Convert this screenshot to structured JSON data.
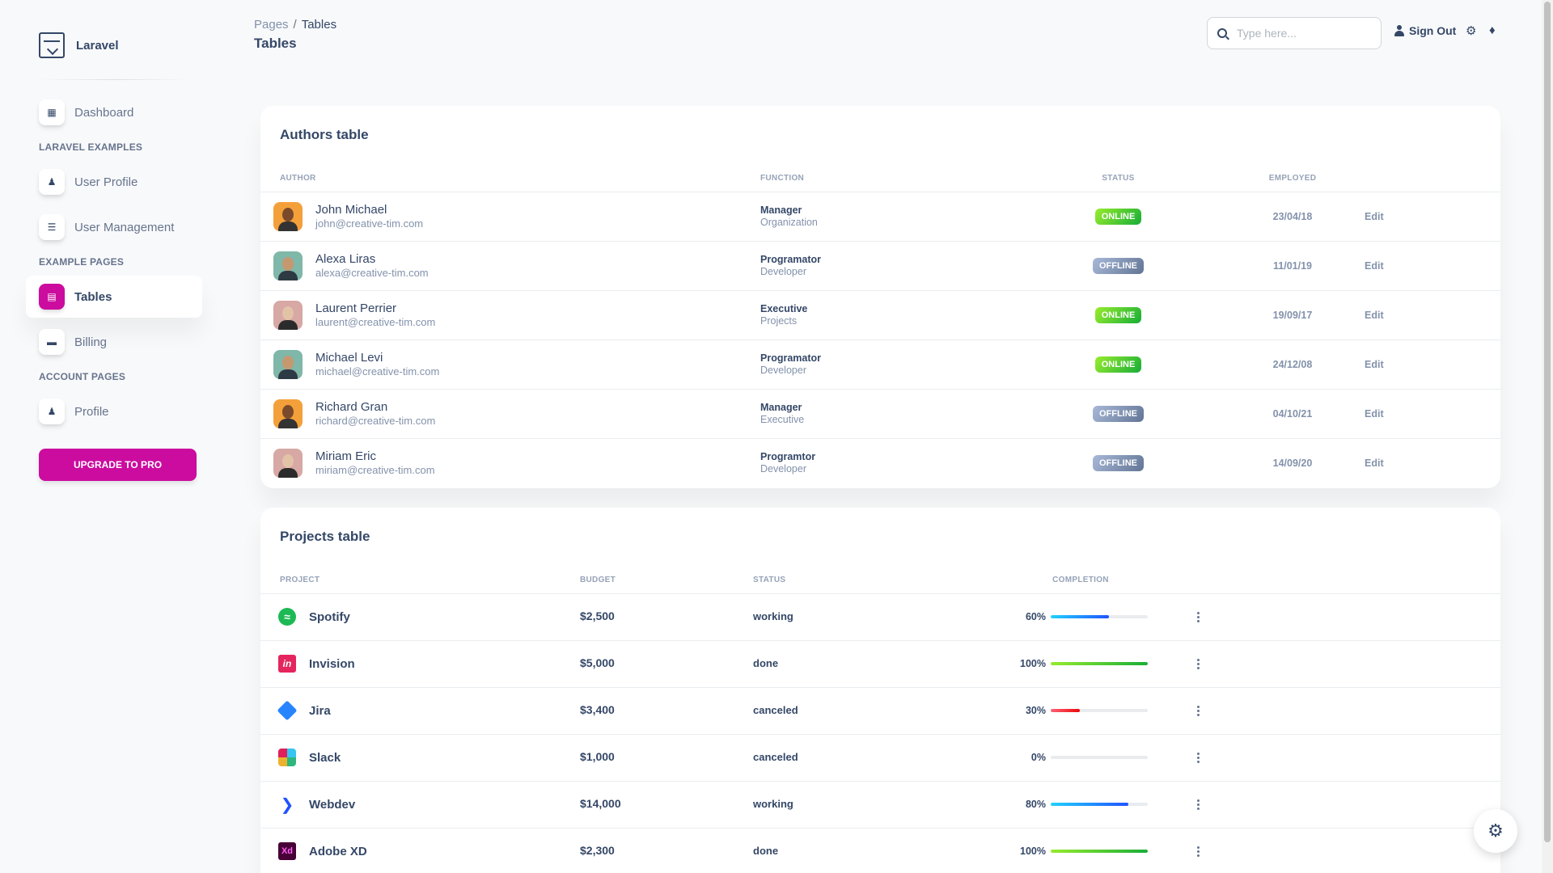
{
  "sidebar": {
    "brand": "Laravel",
    "items": [
      {
        "label": "Dashboard",
        "icon": "shop-icon"
      },
      {
        "label": "User Profile",
        "icon": "user-icon"
      },
      {
        "label": "User Management",
        "icon": "list-icon"
      },
      {
        "label": "Tables",
        "icon": "chart-icon",
        "active": true
      },
      {
        "label": "Billing",
        "icon": "credit-card-icon"
      },
      {
        "label": "Profile",
        "icon": "user-icon"
      }
    ],
    "sections": [
      "Laravel Examples",
      "Example Pages",
      "Account Pages"
    ],
    "upgrade_label": "Upgrade to Pro"
  },
  "header": {
    "breadcrumb_parent": "Pages",
    "breadcrumb_sep": "/",
    "breadcrumb_current": "Tables",
    "title": "Tables",
    "search_placeholder": "Type here...",
    "signout_label": "Sign Out"
  },
  "authors": {
    "title": "Authors table",
    "columns": [
      "Author",
      "Function",
      "Status",
      "Employed"
    ],
    "edit_label": "Edit",
    "rows": [
      {
        "name": "John Michael",
        "email": "john@creative-tim.com",
        "role": "Manager",
        "dept": "Organization",
        "status": "Online",
        "date": "23/04/18"
      },
      {
        "name": "Alexa Liras",
        "email": "alexa@creative-tim.com",
        "role": "Programator",
        "dept": "Developer",
        "status": "Offline",
        "date": "11/01/19"
      },
      {
        "name": "Laurent Perrier",
        "email": "laurent@creative-tim.com",
        "role": "Executive",
        "dept": "Projects",
        "status": "Online",
        "date": "19/09/17"
      },
      {
        "name": "Michael Levi",
        "email": "michael@creative-tim.com",
        "role": "Programator",
        "dept": "Developer",
        "status": "Online",
        "date": "24/12/08"
      },
      {
        "name": "Richard Gran",
        "email": "richard@creative-tim.com",
        "role": "Manager",
        "dept": "Executive",
        "status": "Offline",
        "date": "04/10/21"
      },
      {
        "name": "Miriam Eric",
        "email": "miriam@creative-tim.com",
        "role": "Programtor",
        "dept": "Developer",
        "status": "Offline",
        "date": "14/09/20"
      }
    ]
  },
  "projects": {
    "title": "Projects table",
    "columns": [
      "Project",
      "Budget",
      "Status",
      "Completion"
    ],
    "rows": [
      {
        "name": "Spotify",
        "budget": "$2,500",
        "status": "working",
        "pct": "60%"
      },
      {
        "name": "Invision",
        "budget": "$5,000",
        "status": "done",
        "pct": "100%"
      },
      {
        "name": "Jira",
        "budget": "$3,400",
        "status": "canceled",
        "pct": "30%"
      },
      {
        "name": "Slack",
        "budget": "$1,000",
        "status": "canceled",
        "pct": "0%"
      },
      {
        "name": "Webdev",
        "budget": "$14,000",
        "status": "working",
        "pct": "80%"
      },
      {
        "name": "Adobe XD",
        "budget": "$2,300",
        "status": "done",
        "pct": "100%"
      }
    ]
  },
  "colors": {
    "accent": "#cb0c9f",
    "online": "#2dce89",
    "offline": "#8392ab",
    "progress_info": "#1171ef",
    "progress_success": "#82d616",
    "progress_danger": "#ea0606"
  }
}
